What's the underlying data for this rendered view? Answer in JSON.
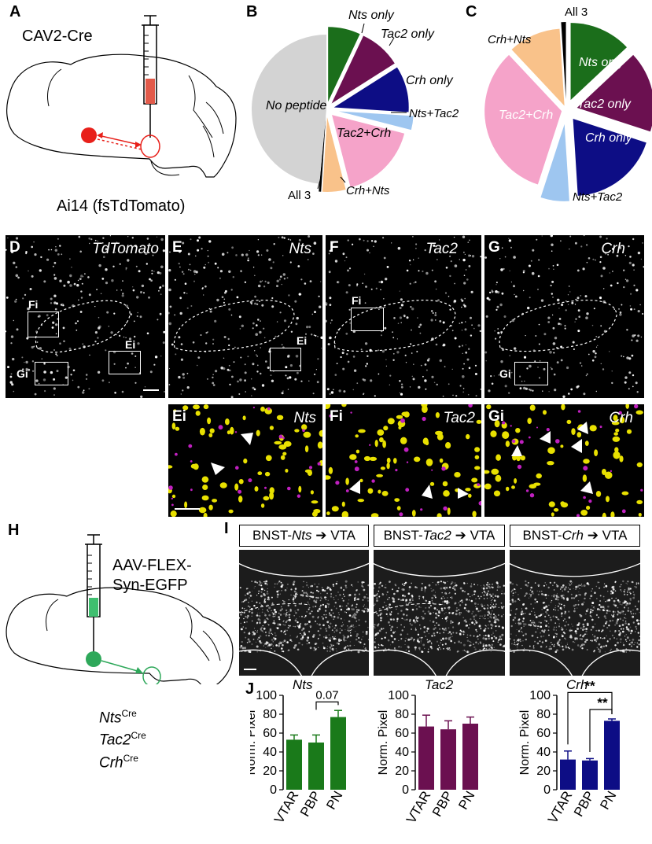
{
  "panel_letters": {
    "A": "A",
    "B": "B",
    "C": "C",
    "D": "D",
    "E": "E",
    "F": "F",
    "G": "G",
    "H": "H",
    "I": "I",
    "J": "J"
  },
  "panelA": {
    "virus": "CAV2-Cre",
    "mouse": "Ai14 (fsTdTomato)"
  },
  "panelB": {
    "labels": {
      "nts_only": "Nts only",
      "tac2_only": "Tac2 only",
      "crh_only": "Crh only",
      "nts_tac2": "Nts+Tac2",
      "tac2_crh": "Tac2+Crh",
      "crh_nts": "Crh+Nts",
      "all3": "All 3",
      "no_peptide": "No peptide"
    }
  },
  "panelC": {
    "labels": {
      "nts_only": "Nts only",
      "tac2_only": "Tac2 only",
      "crh_only": "Crh only",
      "nts_tac2": "Nts+Tac2",
      "tac2_crh": "Tac2+Crh",
      "crh_nts": "Crh+Nts",
      "all3": "All 3"
    }
  },
  "micro": {
    "D": "TdTomato",
    "E": "Nts",
    "F": "Tac2",
    "G": "Crh",
    "Ei": "Nts",
    "Fi": "Tac2",
    "Gi": "Crh",
    "Ei_label": "Ei",
    "Fi_label": "Fi",
    "Gi_label": "Gi",
    "box_Fi": "Fi",
    "box_Ei": "Ei",
    "box_Gi": "Gi"
  },
  "panelH": {
    "virus_line1": "AAV-FLEX-",
    "virus_line2": "Syn-EGFP",
    "nts": "Nts",
    "tac2": "Tac2",
    "crh": "Crh",
    "cre": "Cre"
  },
  "panelI": {
    "t1_pre": "BNST-",
    "t1_gene": "Nts",
    "t1_post": "VTA",
    "t2_pre": "BNST-",
    "t2_gene": "Tac2",
    "t2_post": "VTA",
    "t3_pre": "BNST-",
    "t3_gene": "Crh",
    "t3_post": "VTA"
  },
  "chart_data": [
    {
      "type": "bar",
      "title": "Nts",
      "ylabel": "Norm. Pixel",
      "categories": [
        "VTAR",
        "PBP",
        "PN"
      ],
      "values": [
        53,
        50,
        77
      ],
      "errors": [
        5,
        8,
        7
      ],
      "ylim": [
        0,
        100
      ],
      "yticks": [
        0,
        20,
        40,
        60,
        80,
        100
      ],
      "color": "#1a7a1a",
      "annotation": "0.07"
    },
    {
      "type": "bar",
      "title": "Tac2",
      "ylabel": "Norm. Pixel",
      "categories": [
        "VTAR",
        "PBP",
        "PN"
      ],
      "values": [
        67,
        64,
        70
      ],
      "errors": [
        12,
        9,
        7
      ],
      "ylim": [
        0,
        100
      ],
      "yticks": [
        0,
        20,
        40,
        60,
        80,
        100
      ],
      "color": "#6b1050"
    },
    {
      "type": "bar",
      "title": "Crh",
      "ylabel": "Norm. Pixel",
      "categories": [
        "VTAR",
        "PBP",
        "PN"
      ],
      "values": [
        32,
        31,
        73
      ],
      "errors": [
        9,
        2,
        2
      ],
      "ylim": [
        0,
        100
      ],
      "yticks": [
        0,
        20,
        40,
        60,
        80,
        100
      ],
      "color": "#0d0d85",
      "annotations": [
        "**",
        "**"
      ]
    }
  ],
  "pie_data": [
    {
      "type": "pie",
      "panel": "B",
      "slices": [
        {
          "label": "Nts only",
          "value": 7,
          "color": "#1b6e1b"
        },
        {
          "label": "Tac2 only",
          "value": 9,
          "color": "#6b1050"
        },
        {
          "label": "Crh only",
          "value": 10,
          "color": "#0d0d85"
        },
        {
          "label": "Nts+Tac2",
          "value": 3,
          "color": "#9ec6f0"
        },
        {
          "label": "Tac2+Crh",
          "value": 17,
          "color": "#f5a3c9"
        },
        {
          "label": "Crh+Nts",
          "value": 5,
          "color": "#f9c28a"
        },
        {
          "label": "All 3",
          "value": 0.5,
          "color": "#000000"
        },
        {
          "label": "No peptide",
          "value": 48.5,
          "color": "#d3d3d3"
        }
      ]
    },
    {
      "type": "pie",
      "panel": "C",
      "slices": [
        {
          "label": "Nts only",
          "value": 13,
          "color": "#1b6e1b"
        },
        {
          "label": "Tac2 only",
          "value": 17,
          "color": "#6b1050"
        },
        {
          "label": "Crh only",
          "value": 19,
          "color": "#0d0d85"
        },
        {
          "label": "Nts+Tac2",
          "value": 6,
          "color": "#9ec6f0"
        },
        {
          "label": "Tac2+Crh",
          "value": 33,
          "color": "#f5a3c9"
        },
        {
          "label": "Crh+Nts",
          "value": 11,
          "color": "#f9c28a"
        },
        {
          "label": "All 3",
          "value": 1,
          "color": "#000000"
        }
      ]
    }
  ]
}
